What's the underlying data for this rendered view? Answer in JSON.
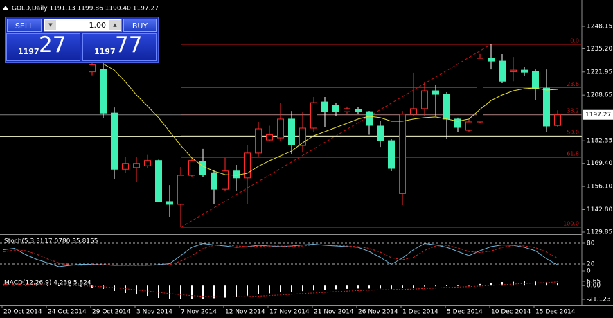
{
  "chart_data": [
    {
      "type": "candlestick",
      "title": "GOLD,Daily  1191.13 1199.86 1190.40 1197.27",
      "categories": [
        "20 Oct 2014",
        null,
        null,
        null,
        "24 Oct 2014",
        null,
        null,
        null,
        "29 Oct 2014",
        null,
        null,
        null,
        "3 Nov 2014",
        null,
        null,
        null,
        "7 Nov 2014",
        null,
        null,
        null,
        "12 Nov 2014",
        null,
        null,
        null,
        "17 Nov 2014",
        null,
        null,
        null,
        "21 Nov 2014",
        null,
        null,
        null,
        "26 Nov 2014",
        null,
        null,
        null,
        "1 Dec 2014",
        null,
        null,
        null,
        "5 Dec 2014",
        null,
        null,
        null,
        "10 Dec 2014",
        null,
        null,
        null,
        "15 Dec 2014",
        null,
        null
      ],
      "open": [
        null,
        null,
        null,
        null,
        null,
        null,
        null,
        null,
        1222,
        1223.4,
        1198.3,
        1166,
        1167,
        1168,
        1171,
        1147.4,
        1145.8,
        1162.5,
        1170.4,
        1164,
        1154.5,
        1165,
        1161,
        1175.3,
        1182.8,
        1184,
        1194.8,
        1179.6,
        1189.6,
        1204.7,
        1202.8,
        1199.1,
        1200.4,
        1199.1,
        1190.8,
        1182.4,
        1152,
        1197.6,
        1200.8,
        1211.1,
        1209.1,
        1194.8,
        1188.4,
        1193.2,
        1229.8,
        1228.2,
        1222.1,
        1223,
        1222.2,
        1212.6,
        1191.13
      ],
      "high": [
        null,
        null,
        null,
        null,
        null,
        null,
        null,
        null,
        1228,
        1228,
        1201.5,
        1173,
        1173,
        1174.2,
        1171.5,
        1156.9,
        1167.3,
        1172.9,
        1177.7,
        1165.7,
        1172.5,
        1168.5,
        1179.7,
        1193.2,
        1191,
        1204.3,
        1199.5,
        1198.7,
        1207.5,
        1207.5,
        1204.3,
        1202,
        1201.6,
        1199.5,
        1193.6,
        1183.6,
        1199.5,
        1221.5,
        1216.3,
        1214.3,
        1210.3,
        1195.6,
        1194.8,
        1232.2,
        1237.8,
        1232.2,
        1230.6,
        1225,
        1223.4,
        1223.4,
        1199.86
      ],
      "low": [
        null,
        null,
        null,
        null,
        null,
        null,
        null,
        null,
        1220,
        1195.5,
        1160.5,
        1163.7,
        1158.9,
        1166.5,
        1147,
        1138.6,
        1132.6,
        1161.3,
        1161.3,
        1146.2,
        1153.4,
        1153.4,
        1146.2,
        1173.3,
        1182,
        1182,
        1174.8,
        1175.6,
        1187.6,
        1190,
        1196.4,
        1198,
        1197.6,
        1185.8,
        1178.8,
        1164.9,
        1145.4,
        1196.4,
        1196.4,
        1196.4,
        1183.6,
        1187.6,
        1187.6,
        1192.4,
        1223.4,
        1215.5,
        1216.6,
        1219.7,
        1205.9,
        1187.6,
        1190.4
      ],
      "close": [
        null,
        null,
        null,
        null,
        null,
        null,
        null,
        null,
        1226,
        1198.3,
        1166,
        1169.4,
        1169.4,
        1171,
        1147.4,
        1145.8,
        1162.5,
        1171,
        1162.9,
        1154.5,
        1165,
        1161,
        1175.3,
        1189.2,
        1185.8,
        1194.8,
        1180,
        1189.6,
        1204.3,
        1199.1,
        1199.1,
        1200.8,
        1199.1,
        1191.2,
        1182.4,
        1166.5,
        1197.6,
        1200.8,
        1211.1,
        1209.1,
        1194.8,
        1190,
        1193.2,
        1229.8,
        1228.2,
        1216.6,
        1223,
        1221.8,
        1212.2,
        1190.8,
        1197.27
      ],
      "up_color": "#ff2a2a",
      "down_color": "#3ff0b4",
      "wick_color": "#ffffff",
      "ylim": [
        1128.66,
        1262.49
      ],
      "yticks": [
        1248.15,
        {
          "value": 1235.2,
          "label": "1235.20"
        },
        1221.95,
        1208.65,
        1182.35,
        {
          "value": 1169.4,
          "label": "1169.40"
        },
        {
          "value": 1156.1,
          "label": "1156.10"
        },
        {
          "value": 1142.8,
          "label": "1142.80"
        },
        1129.85
      ],
      "last_price": 1197.27,
      "moving_average": {
        "color": "#e8e030",
        "values": [
          null,
          null,
          null,
          null,
          null,
          null,
          null,
          null,
          null,
          1226.6,
          1223.0,
          1216.3,
          1208.7,
          1202.3,
          1195.6,
          1187.6,
          1179.6,
          1172.5,
          1167.7,
          1164.9,
          1162.9,
          1162.5,
          1163.7,
          1167.7,
          1170.9,
          1173.7,
          1176.5,
          1181.2,
          1185.2,
          1187.6,
          1190.0,
          1192.4,
          1194.8,
          1196.4,
          1195.6,
          1193.6,
          1193.6,
          1194.8,
          1195.6,
          1196.0,
          1194.8,
          1193.6,
          1194.8,
          1200.4,
          1205.5,
          1208.7,
          1211.1,
          1212.3,
          1212.7,
          1211.5,
          1211.9
        ]
      },
      "hline": {
        "value": 1184.6,
        "color": "#d8d8b0"
      },
      "fibonacci": {
        "color": "#c81414",
        "low": 1132.6,
        "high": 1237.8,
        "levels": [
          {
            "value": 0,
            "label": "0.0"
          },
          23.6,
          38.2,
          {
            "value": 50,
            "label": "50.0"
          },
          61.8,
          {
            "value": 100,
            "label": "100.0"
          }
        ]
      }
    },
    {
      "type": "line",
      "title": "Stoch(5,3,3) 17.0780 35.8155",
      "series": [
        {
          "color": "#6fb6d8",
          "values": [
            61,
            65,
            47,
            33,
            23,
            12,
            16,
            19,
            19,
            18,
            16,
            16,
            16,
            16,
            18,
            21,
            44,
            68,
            79,
            75,
            72,
            68,
            70,
            74,
            72,
            70,
            72,
            75,
            77,
            74,
            72,
            70,
            68,
            56,
            39,
            19,
            37,
            61,
            79,
            75,
            68,
            56,
            44,
            58,
            70,
            75,
            74,
            68,
            58,
            35,
            17.078
          ]
        },
        {
          "color": "#e02020",
          "dashed": true,
          "values": [
            55,
            60,
            58,
            48,
            34,
            23,
            17,
            16,
            18,
            18,
            17,
            16,
            16,
            16,
            17,
            18,
            28,
            44,
            64,
            74,
            75,
            72,
            70,
            71,
            72,
            72,
            71,
            72,
            75,
            75,
            74,
            72,
            70,
            65,
            54,
            38,
            32,
            39,
            59,
            72,
            74,
            66,
            56,
            53,
            57,
            68,
            73,
            72,
            67,
            54,
            35.8155
          ]
        }
      ],
      "ylim": [
        0,
        100
      ],
      "yticks": [
        80,
        20,
        0
      ]
    },
    {
      "type": "macd",
      "title": "MACD(12,26,9) 4.239 5.824",
      "color": "#ffffff",
      "values": [
        1.5,
        1.2,
        1,
        0.8,
        0.5,
        0.2,
        -0.5,
        -1.5,
        -3,
        -5,
        -8.3,
        -11.5,
        -13.7,
        -15.8,
        -19,
        -20,
        -21.1,
        -21,
        -20.5,
        -19.5,
        -18.5,
        -17,
        -15.5,
        -13.5,
        -12,
        -10.5,
        -9.5,
        -8.5,
        -7.5,
        -6.5,
        -5.5,
        -5,
        -4.5,
        -4.5,
        -4.5,
        -5,
        -4,
        -3,
        -1.5,
        -0.5,
        0.3,
        0.5,
        0.8,
        2.5,
        4.5,
        5.5,
        6,
        6.6,
        6.3,
        5.3,
        4.239
      ],
      "signal": {
        "color": "#e02020",
        "values": [
          2,
          1.8,
          1.5,
          1.2,
          0.9,
          0.6,
          0.3,
          -0.2,
          -1,
          -1.8,
          -3.1,
          -4.8,
          -6.6,
          -8.4,
          -10.5,
          -12.4,
          -14.1,
          -15.5,
          -16.5,
          -17.1,
          -17.4,
          -17.3,
          -16.9,
          -16.2,
          -15.4,
          -14.4,
          -13.4,
          -12.4,
          -11.4,
          -10.4,
          -9.4,
          -8.5,
          -7.7,
          -7,
          -6.5,
          -6.2,
          -5.8,
          -5.3,
          -4.5,
          -3.7,
          -2.9,
          -2.2,
          -1.6,
          -0.8,
          0.3,
          1.3,
          2.3,
          3.2,
          4,
          4.6,
          5.824
        ]
      },
      "ylim": [
        -27.5,
        13
      ],
      "yticks": [
        6.65,
        {
          "value": 0,
          "label": "0.00"
        },
        -21.123
      ]
    }
  ],
  "trade_panel": {
    "sell": "SELL",
    "buy": "BUY",
    "lot": "1.00",
    "bid_small": "1197",
    "bid_big": "27",
    "ask_small": "1197",
    "ask_big": "77"
  }
}
